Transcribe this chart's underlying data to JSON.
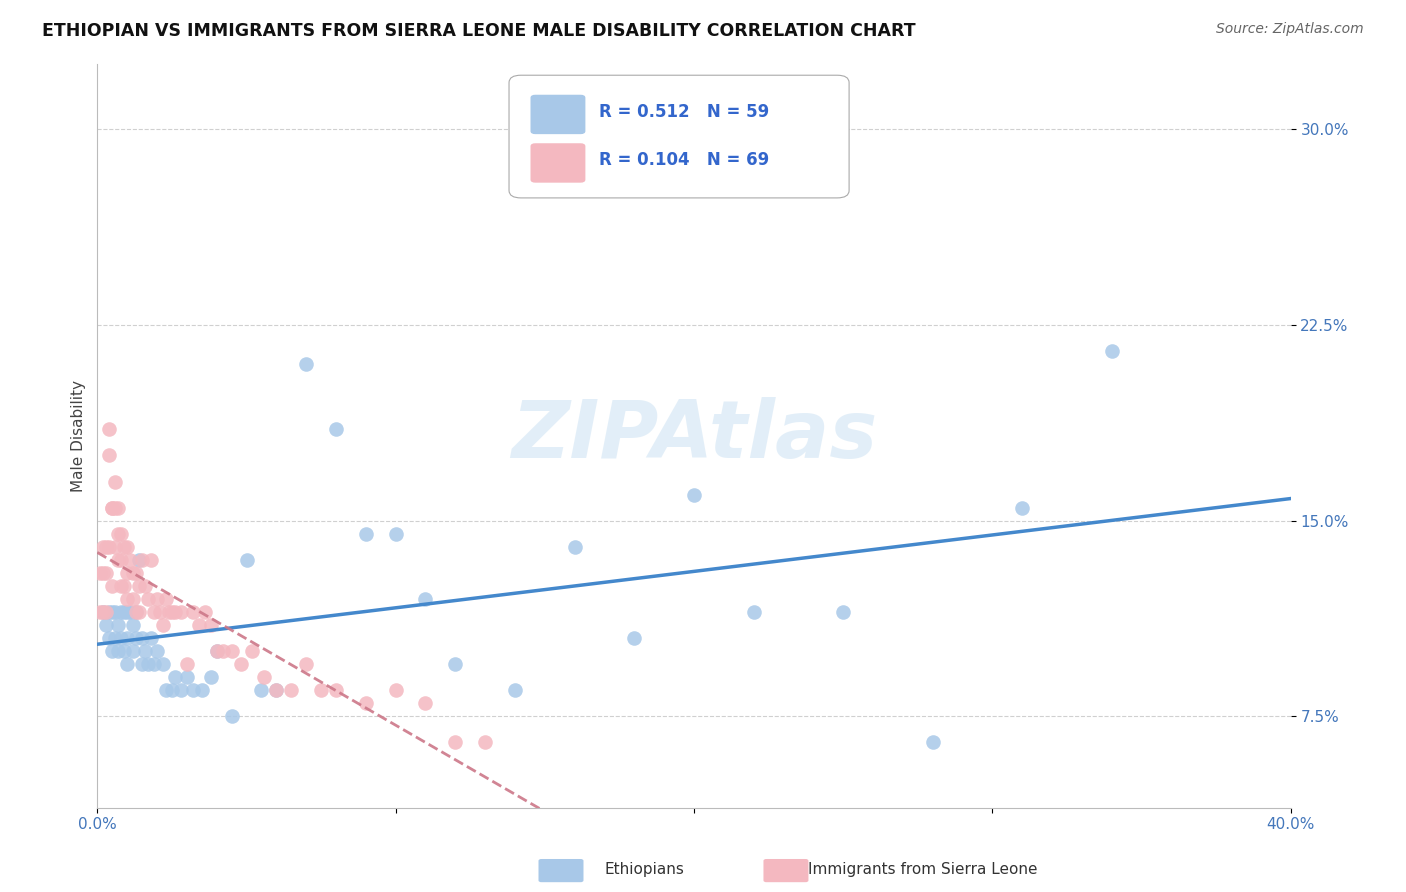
{
  "title": "ETHIOPIAN VS IMMIGRANTS FROM SIERRA LEONE MALE DISABILITY CORRELATION CHART",
  "source": "Source: ZipAtlas.com",
  "ylabel": "Male Disability",
  "x_min": 0.0,
  "x_max": 0.4,
  "y_min": 0.04,
  "y_max": 0.325,
  "x_ticks": [
    0.0,
    0.1,
    0.2,
    0.3,
    0.4
  ],
  "x_tick_labels": [
    "0.0%",
    "",
    "",
    "",
    "40.0%"
  ],
  "y_ticks": [
    0.075,
    0.15,
    0.225,
    0.3
  ],
  "y_tick_labels": [
    "7.5%",
    "15.0%",
    "22.5%",
    "30.0%"
  ],
  "grid_color": "#d0d0d0",
  "watermark": "ZIPAtlas",
  "legend_r1": "R = 0.512",
  "legend_n1": "N = 59",
  "legend_r2": "R = 0.104",
  "legend_n2": "N = 69",
  "blue_color": "#a8c8e8",
  "pink_color": "#f4b8c0",
  "line_blue": "#4488cc",
  "line_pink": "#cc7788",
  "ethiopians_x": [
    0.002,
    0.003,
    0.004,
    0.004,
    0.005,
    0.005,
    0.006,
    0.006,
    0.007,
    0.007,
    0.008,
    0.008,
    0.009,
    0.009,
    0.01,
    0.01,
    0.01,
    0.011,
    0.012,
    0.012,
    0.013,
    0.013,
    0.014,
    0.015,
    0.015,
    0.016,
    0.017,
    0.018,
    0.019,
    0.02,
    0.022,
    0.023,
    0.025,
    0.026,
    0.028,
    0.03,
    0.032,
    0.035,
    0.038,
    0.04,
    0.045,
    0.05,
    0.055,
    0.06,
    0.07,
    0.08,
    0.09,
    0.1,
    0.11,
    0.12,
    0.14,
    0.16,
    0.18,
    0.2,
    0.22,
    0.25,
    0.28,
    0.31,
    0.34
  ],
  "ethiopians_y": [
    0.115,
    0.11,
    0.105,
    0.115,
    0.1,
    0.115,
    0.105,
    0.115,
    0.11,
    0.1,
    0.105,
    0.115,
    0.1,
    0.115,
    0.115,
    0.105,
    0.095,
    0.115,
    0.1,
    0.11,
    0.105,
    0.115,
    0.135,
    0.105,
    0.095,
    0.1,
    0.095,
    0.105,
    0.095,
    0.1,
    0.095,
    0.085,
    0.085,
    0.09,
    0.085,
    0.09,
    0.085,
    0.085,
    0.09,
    0.1,
    0.075,
    0.135,
    0.085,
    0.085,
    0.21,
    0.185,
    0.145,
    0.145,
    0.12,
    0.095,
    0.085,
    0.14,
    0.105,
    0.16,
    0.115,
    0.115,
    0.065,
    0.155,
    0.215
  ],
  "sierra_leone_x": [
    0.001,
    0.001,
    0.002,
    0.002,
    0.002,
    0.003,
    0.003,
    0.003,
    0.004,
    0.004,
    0.004,
    0.005,
    0.005,
    0.005,
    0.006,
    0.006,
    0.006,
    0.007,
    0.007,
    0.007,
    0.008,
    0.008,
    0.008,
    0.009,
    0.009,
    0.01,
    0.01,
    0.01,
    0.011,
    0.012,
    0.012,
    0.013,
    0.013,
    0.014,
    0.014,
    0.015,
    0.016,
    0.017,
    0.018,
    0.019,
    0.02,
    0.021,
    0.022,
    0.023,
    0.024,
    0.025,
    0.026,
    0.028,
    0.03,
    0.032,
    0.034,
    0.036,
    0.038,
    0.04,
    0.042,
    0.045,
    0.048,
    0.052,
    0.056,
    0.06,
    0.065,
    0.07,
    0.075,
    0.08,
    0.09,
    0.1,
    0.11,
    0.12,
    0.13
  ],
  "sierra_leone_y": [
    0.13,
    0.115,
    0.13,
    0.115,
    0.14,
    0.14,
    0.13,
    0.115,
    0.185,
    0.175,
    0.14,
    0.155,
    0.155,
    0.125,
    0.165,
    0.155,
    0.14,
    0.155,
    0.145,
    0.135,
    0.145,
    0.135,
    0.125,
    0.14,
    0.125,
    0.14,
    0.13,
    0.12,
    0.135,
    0.13,
    0.12,
    0.13,
    0.115,
    0.125,
    0.115,
    0.135,
    0.125,
    0.12,
    0.135,
    0.115,
    0.12,
    0.115,
    0.11,
    0.12,
    0.115,
    0.115,
    0.115,
    0.115,
    0.095,
    0.115,
    0.11,
    0.115,
    0.11,
    0.1,
    0.1,
    0.1,
    0.095,
    0.1,
    0.09,
    0.085,
    0.085,
    0.095,
    0.085,
    0.085,
    0.08,
    0.085,
    0.08,
    0.065,
    0.065
  ]
}
